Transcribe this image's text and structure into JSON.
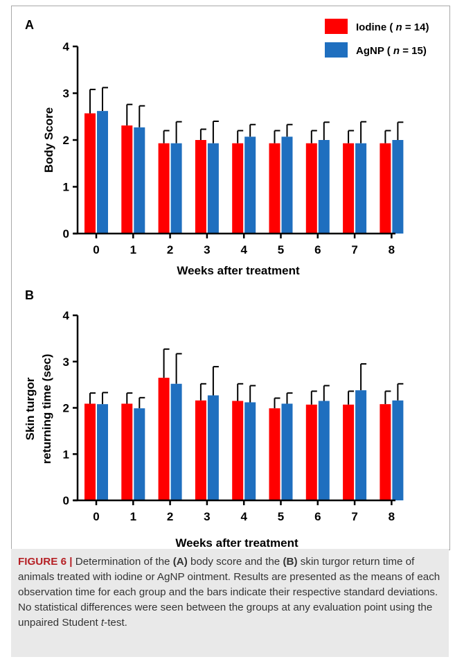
{
  "legend": [
    {
      "prefix": "Iodine ( ",
      "n_label": "n",
      "suffix": " = 14)",
      "color": "#ff0000"
    },
    {
      "prefix": "AgNP ( ",
      "n_label": "n",
      "suffix": " = 15)",
      "color": "#1f6fbf"
    }
  ],
  "caption": {
    "figure_label": "FIGURE 6 |",
    "part1": " Determination of the ",
    "a_ref": "(A)",
    "part2": " body score and the ",
    "b_ref": "(B)",
    "part3": " skin turgor return time of animals treated with iodine or AgNP ointment. Results are presented as the means of each observation time for each group and the bars indicate their respective standard deviations. No statistical differences were seen between the groups at any evaluation point using the unpaired Student ",
    "t_italic": "t",
    "part4": "-test."
  },
  "chart_data": [
    {
      "type": "bar",
      "panel": "A",
      "categories": [
        "0",
        "1",
        "2",
        "3",
        "4",
        "5",
        "6",
        "7",
        "8"
      ],
      "xlabel": "Weeks after treatment",
      "ylabel": "Body Score",
      "ylim": [
        0,
        4
      ],
      "yticks": [
        "0",
        "1",
        "2",
        "3",
        "4"
      ],
      "series": [
        {
          "name": "Iodine",
          "color": "#ff0000",
          "values": [
            2.57,
            2.31,
            1.93,
            2.0,
            1.93,
            1.93,
            1.93,
            1.93,
            1.93
          ],
          "sd": [
            0.51,
            0.45,
            0.27,
            0.23,
            0.27,
            0.27,
            0.27,
            0.27,
            0.27
          ]
        },
        {
          "name": "AgNP",
          "color": "#1f6fbf",
          "values": [
            2.62,
            2.27,
            1.93,
            1.93,
            2.07,
            2.07,
            2.0,
            1.93,
            2.0
          ],
          "sd": [
            0.5,
            0.46,
            0.46,
            0.47,
            0.26,
            0.26,
            0.38,
            0.46,
            0.38
          ]
        }
      ]
    },
    {
      "type": "bar",
      "panel": "B",
      "categories": [
        "0",
        "1",
        "2",
        "3",
        "4",
        "5",
        "6",
        "7",
        "8"
      ],
      "xlabel": "Weeks after treatment",
      "ylabel_lines": [
        "Skin turgor",
        "returning time (sec)"
      ],
      "ylim": [
        0,
        4
      ],
      "yticks": [
        "0",
        "1",
        "2",
        "3",
        "4"
      ],
      "series": [
        {
          "name": "Iodine",
          "color": "#ff0000",
          "values": [
            2.09,
            2.09,
            2.65,
            2.16,
            2.15,
            1.99,
            2.07,
            2.07,
            2.08
          ],
          "sd": [
            0.23,
            0.23,
            0.62,
            0.36,
            0.37,
            0.22,
            0.29,
            0.29,
            0.28
          ]
        },
        {
          "name": "AgNP",
          "color": "#1f6fbf",
          "values": [
            2.08,
            1.99,
            2.52,
            2.27,
            2.12,
            2.09,
            2.15,
            2.38,
            2.16
          ],
          "sd": [
            0.25,
            0.23,
            0.65,
            0.62,
            0.36,
            0.23,
            0.33,
            0.57,
            0.36
          ]
        }
      ]
    }
  ]
}
